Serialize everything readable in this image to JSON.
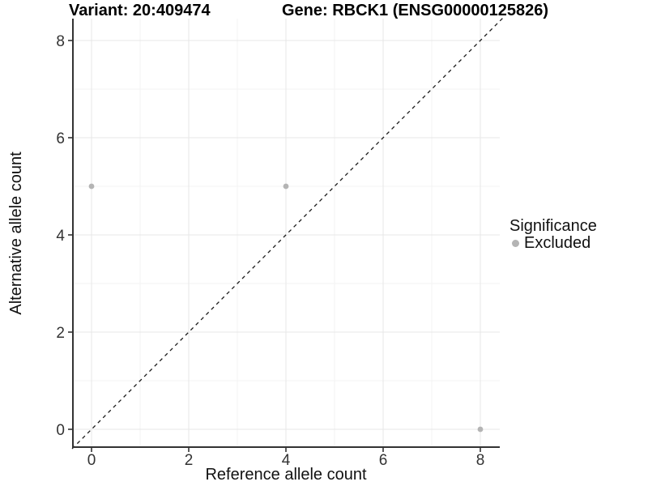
{
  "figure": {
    "title_left": "Variant: 20:409474",
    "title_right": "Gene: RBCK1 (ENSG00000125826)"
  },
  "axes": {
    "x_label": "Reference allele count",
    "y_label": "Alternative allele count"
  },
  "legend": {
    "title": "Significance",
    "items": [
      {
        "label": "Excluded",
        "color": "#b4b4b4"
      }
    ]
  },
  "chart_data": {
    "type": "scatter",
    "title": "Variant: 20:409474 | Gene: RBCK1 (ENSG00000125826)",
    "xlabel": "Reference allele count",
    "ylabel": "Alternative allele count",
    "xlim": [
      -0.4,
      8.45
    ],
    "ylim": [
      -0.4,
      8.45
    ],
    "x_ticks": [
      0,
      2,
      4,
      6,
      8
    ],
    "y_ticks": [
      0,
      2,
      4,
      6,
      8
    ],
    "minor_gridlines_x": [
      1,
      3,
      5,
      7
    ],
    "minor_gridlines_y": [
      1,
      3,
      5,
      7
    ],
    "grid": true,
    "legend_position": "right",
    "series": [
      {
        "name": "Excluded",
        "color": "#b4b4b4",
        "points": [
          {
            "x": 0,
            "y": 5
          },
          {
            "x": 4,
            "y": 5
          },
          {
            "x": 8,
            "y": 0
          }
        ]
      }
    ],
    "reference_line": {
      "kind": "identity y=x",
      "style": "dashed",
      "color": "#1a1a1a"
    }
  },
  "colors": {
    "background": "#ffffff",
    "axis_line": "#333333",
    "tick_text": "#333333",
    "major_grid": "#e7e7e7",
    "minor_grid": "#f3f3f3",
    "point": "#b4b4b4"
  }
}
